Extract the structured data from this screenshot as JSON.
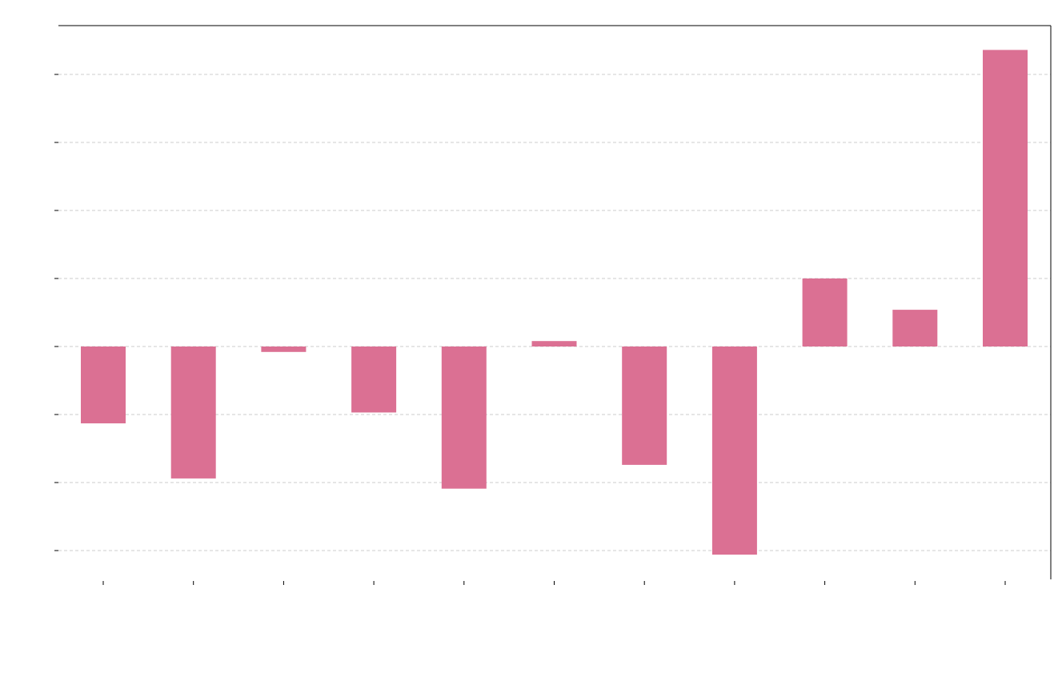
{
  "chart_data": {
    "type": "bar",
    "categories": [
      "",
      "",
      "",
      "",
      "",
      "",
      "",
      "",
      "",
      "",
      ""
    ],
    "values": [
      -1.13,
      -1.94,
      -0.08,
      -0.97,
      -2.09,
      0.08,
      -1.74,
      -3.06,
      1.0,
      0.54,
      4.36
    ],
    "title": "",
    "xlabel": "",
    "ylabel": "",
    "ylim": [
      -3.3,
      4.8
    ],
    "yticks": [
      -3,
      -2,
      -1,
      0,
      1,
      2,
      3,
      4
    ],
    "grid": true,
    "grid_style": "dashed-horizontal",
    "legend": "none",
    "colors": {
      "bar": "#db7093",
      "grid": "#cccccc",
      "axis": "#000000"
    }
  }
}
